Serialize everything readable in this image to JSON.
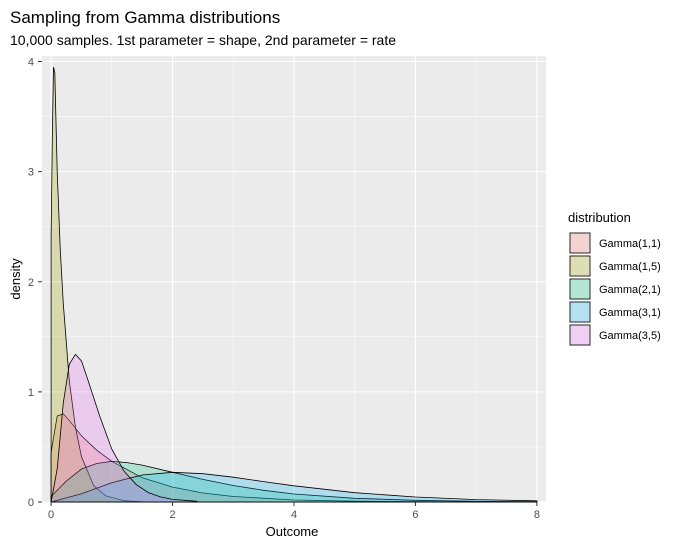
{
  "chart_data": {
    "type": "area",
    "title": "Sampling from Gamma distributions",
    "subtitle": "10,000 samples. 1st parameter = shape, 2nd parameter = rate",
    "xlabel": "Outcome",
    "ylabel": "density",
    "xlim": [
      -0.15,
      8.15
    ],
    "ylim": [
      0,
      4.05
    ],
    "x_ticks": [
      0,
      2,
      4,
      6,
      8
    ],
    "y_ticks": [
      0,
      1,
      2,
      3,
      4
    ],
    "grid": true,
    "legend": {
      "title": "distribution",
      "position": "right"
    },
    "series": [
      {
        "name": "Gamma(1,1)",
        "color": "#F8766D",
        "points": [
          [
            0.0,
            0.45
          ],
          [
            0.1,
            0.78
          ],
          [
            0.2,
            0.8
          ],
          [
            0.3,
            0.74
          ],
          [
            0.5,
            0.6
          ],
          [
            0.75,
            0.47
          ],
          [
            1.0,
            0.37
          ],
          [
            1.5,
            0.22
          ],
          [
            2.0,
            0.135
          ],
          [
            2.5,
            0.082
          ],
          [
            3.0,
            0.05
          ],
          [
            4.0,
            0.018
          ],
          [
            5.0,
            0.007
          ],
          [
            6.0,
            0.0025
          ],
          [
            7.0,
            0.0009
          ],
          [
            8.0,
            0.0003
          ]
        ]
      },
      {
        "name": "Gamma(1,5)",
        "color": "#A3A500",
        "points": [
          [
            0.0,
            2.4
          ],
          [
            0.02,
            3.3
          ],
          [
            0.04,
            3.95
          ],
          [
            0.06,
            3.9
          ],
          [
            0.1,
            3.0
          ],
          [
            0.15,
            2.3
          ],
          [
            0.2,
            1.8
          ],
          [
            0.3,
            1.1
          ],
          [
            0.4,
            0.68
          ],
          [
            0.5,
            0.41
          ],
          [
            0.7,
            0.15
          ],
          [
            0.9,
            0.055
          ],
          [
            1.2,
            0.012
          ],
          [
            1.5,
            0.003
          ]
        ]
      },
      {
        "name": "Gamma(2,1)",
        "color": "#00BF7D",
        "points": [
          [
            0.0,
            0.05
          ],
          [
            0.25,
            0.19
          ],
          [
            0.5,
            0.3
          ],
          [
            0.75,
            0.35
          ],
          [
            1.0,
            0.37
          ],
          [
            1.25,
            0.358
          ],
          [
            1.5,
            0.335
          ],
          [
            2.0,
            0.27
          ],
          [
            2.5,
            0.205
          ],
          [
            3.0,
            0.15
          ],
          [
            3.5,
            0.106
          ],
          [
            4.0,
            0.073
          ],
          [
            5.0,
            0.034
          ],
          [
            6.0,
            0.015
          ],
          [
            7.0,
            0.0064
          ],
          [
            8.0,
            0.0027
          ]
        ]
      },
      {
        "name": "Gamma(3,1)",
        "color": "#00B0F6",
        "points": [
          [
            0.0,
            0.0
          ],
          [
            0.5,
            0.075
          ],
          [
            1.0,
            0.175
          ],
          [
            1.5,
            0.245
          ],
          [
            2.0,
            0.27
          ],
          [
            2.5,
            0.257
          ],
          [
            3.0,
            0.225
          ],
          [
            3.5,
            0.185
          ],
          [
            4.0,
            0.147
          ],
          [
            5.0,
            0.084
          ],
          [
            6.0,
            0.045
          ],
          [
            7.0,
            0.022
          ],
          [
            8.0,
            0.011
          ]
        ]
      },
      {
        "name": "Gamma(3,5)",
        "color": "#E76BF3",
        "points": [
          [
            0.0,
            0.0
          ],
          [
            0.1,
            0.3
          ],
          [
            0.2,
            0.9
          ],
          [
            0.3,
            1.25
          ],
          [
            0.4,
            1.34
          ],
          [
            0.5,
            1.28
          ],
          [
            0.6,
            1.12
          ],
          [
            0.8,
            0.78
          ],
          [
            1.0,
            0.48
          ],
          [
            1.2,
            0.28
          ],
          [
            1.4,
            0.16
          ],
          [
            1.6,
            0.085
          ],
          [
            1.8,
            0.046
          ],
          [
            2.0,
            0.024
          ],
          [
            2.4,
            0.006
          ]
        ]
      }
    ]
  }
}
